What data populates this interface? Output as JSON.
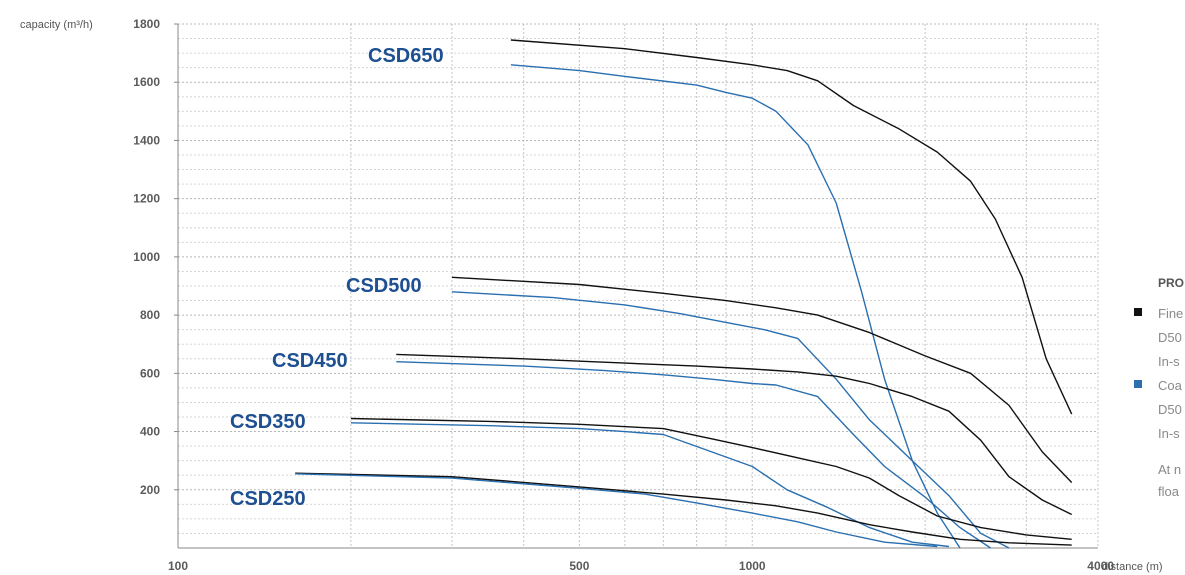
{
  "chart_data": {
    "type": "line",
    "xlabel": "distance (m)",
    "ylabel": "capacity (m³/h)",
    "x_scale": "log",
    "xlim": [
      100,
      4000
    ],
    "ylim": [
      0,
      1800
    ],
    "x_ticks": [
      100,
      500,
      1000,
      4000
    ],
    "y_ticks": [
      200,
      400,
      600,
      800,
      1000,
      1200,
      1400,
      1600,
      1800
    ],
    "grid": true,
    "colors": {
      "fine": "#111111",
      "coarse": "#2a6fb0",
      "label": "#1d4f91"
    },
    "legend": {
      "title": "PRO",
      "items": [
        {
          "marker_color": "#111111",
          "lines": [
            "Fine",
            "D50",
            "In-s"
          ]
        },
        {
          "marker_color": "#2a6fb0",
          "lines": [
            "Coa",
            "D50",
            "In-s"
          ]
        }
      ],
      "note": [
        "At n",
        "floa"
      ]
    },
    "series": [
      {
        "name": "CSD650",
        "label_anchor": [
          1650,
          380
        ],
        "curves": [
          {
            "material": "fine",
            "points": [
              [
                380,
                1745
              ],
              [
                600,
                1715
              ],
              [
                800,
                1685
              ],
              [
                1000,
                1660
              ],
              [
                1150,
                1640
              ],
              [
                1300,
                1605
              ],
              [
                1500,
                1520
              ],
              [
                1800,
                1440
              ],
              [
                2100,
                1360
              ],
              [
                2400,
                1260
              ],
              [
                2650,
                1130
              ],
              [
                2950,
                930
              ],
              [
                3250,
                650
              ],
              [
                3600,
                460
              ]
            ]
          },
          {
            "material": "coarse",
            "points": [
              [
                380,
                1660
              ],
              [
                500,
                1640
              ],
              [
                600,
                1620
              ],
              [
                800,
                1590
              ],
              [
                900,
                1565
              ],
              [
                1000,
                1545
              ],
              [
                1100,
                1500
              ],
              [
                1250,
                1385
              ],
              [
                1400,
                1185
              ],
              [
                1550,
                880
              ],
              [
                1700,
                580
              ],
              [
                1900,
                300
              ],
              [
                2100,
                120
              ],
              [
                2300,
                0
              ]
            ]
          }
        ]
      },
      {
        "name": "CSD500",
        "label_anchor": [
          890,
          310
        ],
        "curves": [
          {
            "material": "fine",
            "points": [
              [
                300,
                930
              ],
              [
                500,
                905
              ],
              [
                700,
                875
              ],
              [
                900,
                850
              ],
              [
                1100,
                825
              ],
              [
                1300,
                800
              ],
              [
                1600,
                740
              ],
              [
                2000,
                660
              ],
              [
                2400,
                600
              ],
              [
                2800,
                490
              ],
              [
                3200,
                330
              ],
              [
                3600,
                225
              ]
            ]
          },
          {
            "material": "coarse",
            "points": [
              [
                300,
                880
              ],
              [
                450,
                860
              ],
              [
                600,
                835
              ],
              [
                750,
                805
              ],
              [
                900,
                775
              ],
              [
                1050,
                750
              ],
              [
                1200,
                720
              ],
              [
                1400,
                580
              ],
              [
                1600,
                440
              ],
              [
                1900,
                300
              ],
              [
                2200,
                180
              ],
              [
                2500,
                50
              ],
              [
                2800,
                0
              ]
            ]
          }
        ]
      },
      {
        "name": "CSD450",
        "label_anchor": [
          405,
          360
        ],
        "curves": [
          {
            "material": "fine",
            "points": [
              [
                240,
                665
              ],
              [
                400,
                650
              ],
              [
                600,
                635
              ],
              [
                800,
                625
              ],
              [
                1000,
                615
              ],
              [
                1200,
                605
              ],
              [
                1400,
                590
              ],
              [
                1600,
                565
              ],
              [
                1900,
                520
              ],
              [
                2200,
                470
              ],
              [
                2500,
                370
              ],
              [
                2800,
                245
              ],
              [
                3200,
                165
              ],
              [
                3600,
                115
              ]
            ]
          },
          {
            "material": "coarse",
            "points": [
              [
                240,
                640
              ],
              [
                400,
                625
              ],
              [
                550,
                610
              ],
              [
                700,
                595
              ],
              [
                850,
                580
              ],
              [
                1000,
                565
              ],
              [
                1100,
                560
              ],
              [
                1300,
                520
              ],
              [
                1500,
                390
              ],
              [
                1700,
                280
              ],
              [
                2000,
                175
              ],
              [
                2300,
                70
              ],
              [
                2600,
                0
              ]
            ]
          }
        ]
      },
      {
        "name": "CSD350",
        "label_anchor": [
          316,
          420
        ],
        "curves": [
          {
            "material": "fine",
            "points": [
              [
                200,
                445
              ],
              [
                350,
                435
              ],
              [
                500,
                425
              ],
              [
                700,
                410
              ],
              [
                850,
                375
              ],
              [
                1000,
                345
              ],
              [
                1200,
                310
              ],
              [
                1400,
                280
              ],
              [
                1600,
                240
              ],
              [
                1800,
                180
              ],
              [
                2100,
                110
              ],
              [
                2500,
                70
              ],
              [
                3000,
                45
              ],
              [
                3600,
                30
              ]
            ]
          },
          {
            "material": "coarse",
            "points": [
              [
                200,
                430
              ],
              [
                350,
                420
              ],
              [
                500,
                410
              ],
              [
                600,
                400
              ],
              [
                700,
                390
              ],
              [
                850,
                330
              ],
              [
                1000,
                280
              ],
              [
                1150,
                200
              ],
              [
                1350,
                140
              ],
              [
                1600,
                70
              ],
              [
                1900,
                20
              ],
              [
                2200,
                5
              ]
            ]
          }
        ]
      },
      {
        "name": "CSD250",
        "label_anchor": [
          316,
          495
        ],
        "curves": [
          {
            "material": "fine",
            "points": [
              [
                160,
                257
              ],
              [
                300,
                245
              ],
              [
                500,
                210
              ],
              [
                700,
                185
              ],
              [
                900,
                165
              ],
              [
                1100,
                145
              ],
              [
                1300,
                120
              ],
              [
                1600,
                80
              ],
              [
                1900,
                55
              ],
              [
                2300,
                30
              ],
              [
                2800,
                18
              ],
              [
                3600,
                10
              ]
            ]
          },
          {
            "material": "coarse",
            "points": [
              [
                160,
                255
              ],
              [
                300,
                240
              ],
              [
                500,
                205
              ],
              [
                650,
                185
              ],
              [
                800,
                155
              ],
              [
                1000,
                120
              ],
              [
                1200,
                90
              ],
              [
                1400,
                55
              ],
              [
                1700,
                20
              ],
              [
                2100,
                5
              ]
            ]
          }
        ]
      }
    ]
  }
}
